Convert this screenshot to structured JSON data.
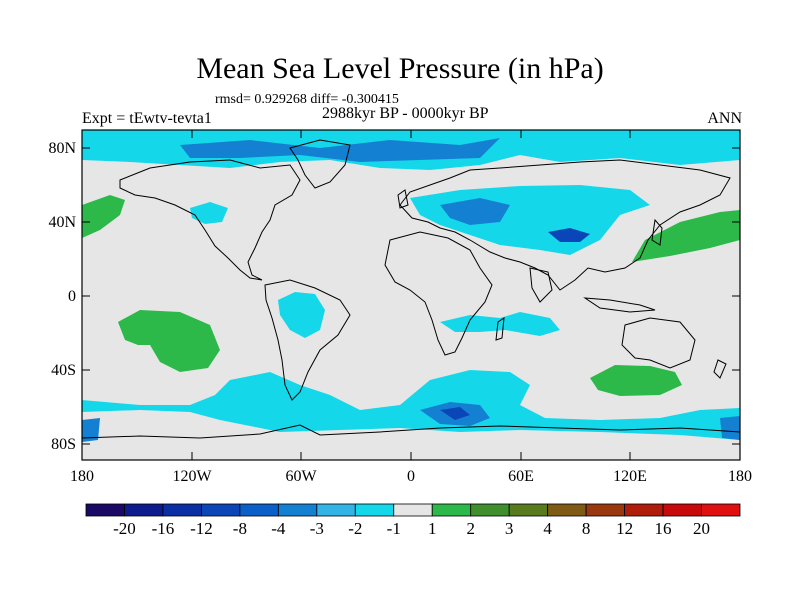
{
  "title": "Mean Sea Level Pressure (in hPa)",
  "stats": "rmsd= 0.929268 diff= -0.300415",
  "period": "2988kyr BP - 0000kyr BP",
  "experiment": "Expt = tEwtv-tevta1",
  "season": "ANN",
  "y_ticks": [
    "80N",
    "40N",
    "0",
    "40S",
    "80S"
  ],
  "x_ticks": [
    "180",
    "120W",
    "60W",
    "0",
    "60E",
    "120E",
    "180"
  ],
  "colorbar": {
    "labels": [
      "-20",
      "-16",
      "-12",
      "-8",
      "-4",
      "-3",
      "-2",
      "-1",
      "1",
      "2",
      "3",
      "4",
      "8",
      "12",
      "16",
      "20"
    ],
    "colors": [
      "#1a0a66",
      "#0c1c8c",
      "#0a2fa5",
      "#0a46b8",
      "#0c5fc8",
      "#1480d2",
      "#33b4e6",
      "#14d8ea",
      "#e6e6e6",
      "#2db84a",
      "#3f8f2d",
      "#5a7a1e",
      "#7f5a14",
      "#99380f",
      "#b01c0a",
      "#c80a0a",
      "#e01010"
    ]
  },
  "colors": {
    "background": "#e6e6e6",
    "light_blue": "#14d8ea",
    "mid_blue": "#1480d2",
    "dark_blue": "#0a46b8",
    "green": "#2db84a"
  }
}
